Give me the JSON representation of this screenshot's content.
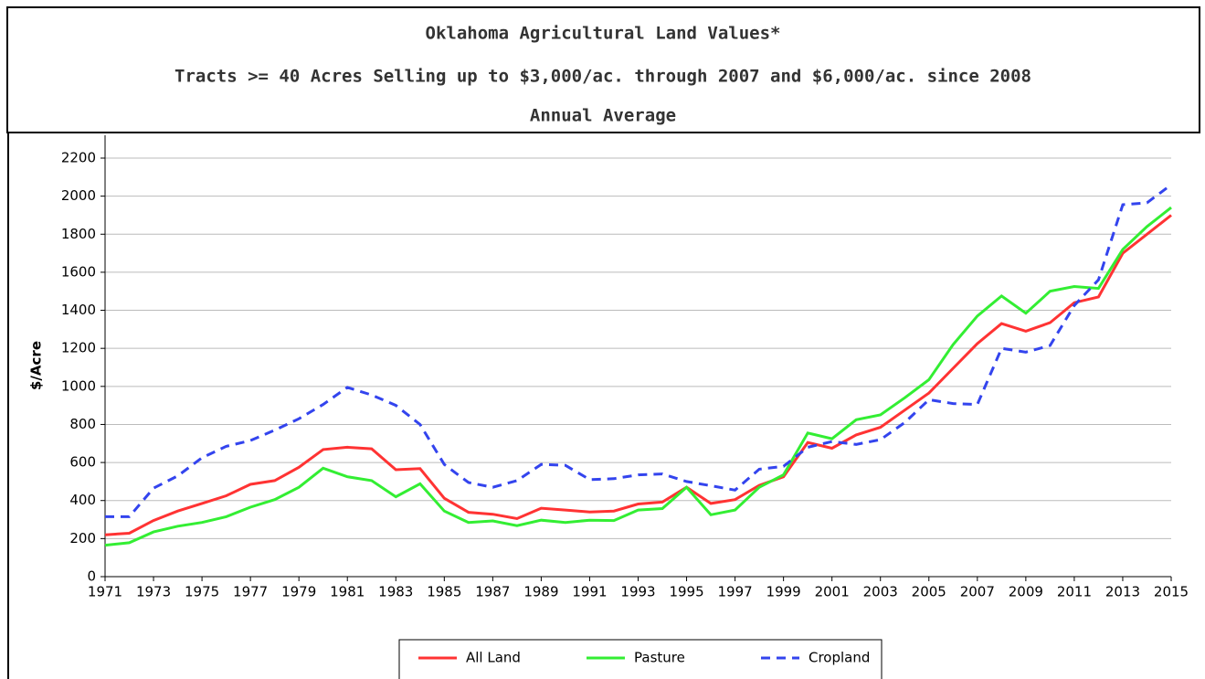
{
  "chart_data": {
    "type": "line",
    "title": "Oklahoma Agricultural Land Values*",
    "subtitle": "Tracts >= 40 Acres Selling up to $3,000/ac. through 2007 and $6,000/ac. since 2008",
    "subtitle2": "Annual Average",
    "y_label": "$/Acre",
    "x": [
      1971,
      1972,
      1973,
      1974,
      1975,
      1976,
      1977,
      1978,
      1979,
      1980,
      1981,
      1982,
      1983,
      1984,
      1985,
      1986,
      1987,
      1988,
      1989,
      1990,
      1991,
      1992,
      1993,
      1994,
      1995,
      1996,
      1997,
      1998,
      1999,
      2000,
      2001,
      2002,
      2003,
      2004,
      2005,
      2006,
      2007,
      2008,
      2009,
      2010,
      2011,
      2012,
      2013,
      2014,
      2015
    ],
    "series": [
      {
        "name": "All Land",
        "color": "#ff3333",
        "style": "solid",
        "values": [
          220,
          228,
          295,
          345,
          385,
          425,
          485,
          505,
          575,
          668,
          680,
          672,
          562,
          568,
          412,
          338,
          328,
          305,
          360,
          350,
          340,
          345,
          382,
          392,
          470,
          385,
          405,
          480,
          525,
          705,
          675,
          745,
          785,
          875,
          965,
          1095,
          1225,
          1330,
          1290,
          1335,
          1440,
          1470,
          1700,
          1800,
          1900
        ]
      },
      {
        "name": "Pasture",
        "color": "#33ee33",
        "style": "solid",
        "values": [
          165,
          178,
          235,
          265,
          285,
          315,
          365,
          405,
          470,
          570,
          525,
          505,
          420,
          488,
          345,
          285,
          293,
          268,
          297,
          285,
          297,
          295,
          350,
          358,
          470,
          325,
          350,
          470,
          535,
          755,
          725,
          825,
          850,
          940,
          1035,
          1220,
          1370,
          1475,
          1385,
          1500,
          1525,
          1515,
          1720,
          1840,
          1940
        ]
      },
      {
        "name": "Cropland",
        "color": "#3344ee",
        "style": "dashed",
        "values": [
          315,
          315,
          465,
          530,
          625,
          685,
          715,
          770,
          830,
          905,
          995,
          955,
          900,
          800,
          590,
          495,
          470,
          505,
          590,
          585,
          510,
          515,
          535,
          540,
          500,
          478,
          455,
          565,
          580,
          680,
          710,
          695,
          720,
          810,
          930,
          910,
          905,
          1200,
          1180,
          1215,
          1425,
          1560,
          1955,
          1965,
          2060
        ]
      }
    ],
    "xlim": [
      1971,
      2015
    ],
    "xticks": [
      1971,
      1973,
      1975,
      1977,
      1979,
      1981,
      1983,
      1985,
      1987,
      1989,
      1991,
      1993,
      1995,
      1997,
      1999,
      2001,
      2003,
      2005,
      2007,
      2009,
      2011,
      2013,
      2015
    ],
    "ylim": [
      0,
      2200
    ],
    "yticks": [
      0,
      200,
      400,
      600,
      800,
      1000,
      1200,
      1400,
      1600,
      1800,
      2000,
      2200
    ],
    "grid": true,
    "legend": "bottom"
  }
}
